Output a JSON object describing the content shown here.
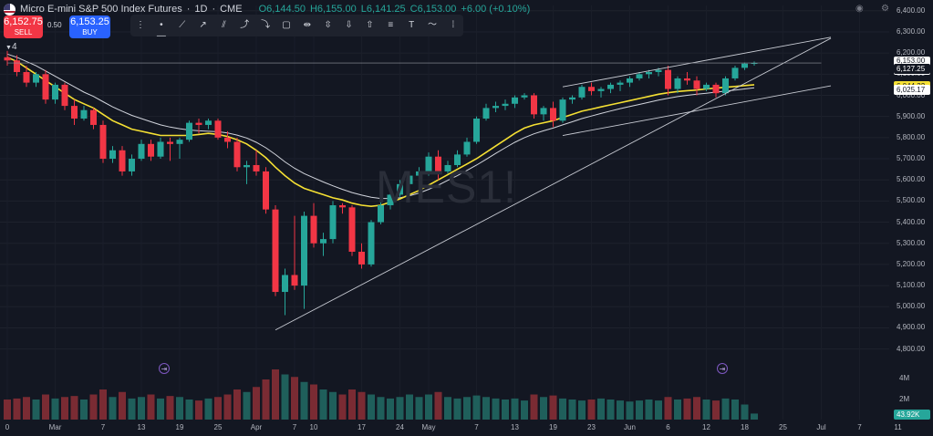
{
  "header": {
    "symbol": "Micro E-mini S&P 500 Index Futures",
    "interval": "1D",
    "exchange": "CME",
    "open": "O6,144.50",
    "high": "H6,155.00",
    "low": "L6,141.25",
    "close": "C6,153.00",
    "change": "+6.00 (+0.10%)"
  },
  "trade": {
    "sell_price": "6,152.75",
    "sell_label": "SELL",
    "spread": "0.50",
    "buy_price": "6,153.25",
    "buy_label": "BUY"
  },
  "indicator_count": "4",
  "toolbar_icons": [
    "drag-handle-icon",
    "horizontal-ray-icon",
    "trend-line-icon",
    "ray-icon",
    "channel-icon",
    "long-position-icon",
    "short-position-icon",
    "rectangle-icon",
    "date-range-icon",
    "price-range-icon",
    "arrow-down-icon",
    "arrow-up-icon",
    "horizontal-line-icon",
    "text-icon",
    "path-icon",
    "vertical-line-icon"
  ],
  "watermark": "MES1!",
  "price_labels": [
    {
      "value": "6,153.00",
      "sub": "16:47:24",
      "bg": "#ffffff",
      "fg": "#131722"
    },
    {
      "value": "6,127.25",
      "bg": "#131722",
      "fg": "#ffffff"
    },
    {
      "value": "6,044.32",
      "bg": "#f5e033",
      "fg": "#131722"
    },
    {
      "value": "6,025.17",
      "bg": "#ffffff",
      "fg": "#131722"
    }
  ],
  "volume_labels": {
    "ticks": [
      "4M",
      "2M"
    ],
    "current": "43.92K",
    "current_bg": "#26a69a"
  },
  "colors": {
    "up": "#26a69a",
    "down": "#f23645",
    "ma_fast": "#f5e033",
    "ma_slow": "#d1d4dc",
    "vol_up": "#1f5f5b",
    "vol_down": "#7a2b33"
  },
  "chart_data": {
    "type": "candlestick",
    "y_axis": {
      "range": [
        4725,
        6425
      ],
      "ticks": [
        "6,400.00",
        "6,300.00",
        "6,200.00",
        "6,100.00",
        "6,000.00",
        "5,900.00",
        "5,800.00",
        "5,700.00",
        "5,600.00",
        "5,500.00",
        "5,400.00",
        "5,300.00",
        "5,200.00",
        "5,100.00",
        "5,000.00",
        "4,900.00",
        "4,800.00"
      ],
      "tick_values": [
        6400,
        6300,
        6200,
        6100,
        6000,
        5900,
        5800,
        5700,
        5600,
        5500,
        5400,
        5300,
        5200,
        5100,
        5000,
        4900,
        4800
      ]
    },
    "x_axis": {
      "labels": [
        "0",
        "Mar",
        "7",
        "13",
        "19",
        "25",
        "Apr",
        "7",
        "10",
        "17",
        "24",
        "May",
        "7",
        "13",
        "19",
        "23",
        "Jun",
        "6",
        "12",
        "18",
        "25",
        "Jul",
        "7",
        "11"
      ],
      "positions": [
        0,
        5,
        10,
        14,
        18,
        22,
        26,
        30,
        32,
        37,
        41,
        44,
        49,
        53,
        57,
        61,
        65,
        69,
        73,
        77,
        81,
        85,
        89,
        93
      ]
    },
    "candles_ohlc": [
      [
        6180,
        6210,
        6140,
        6165
      ],
      [
        6165,
        6190,
        6090,
        6110
      ],
      [
        6110,
        6140,
        6040,
        6060
      ],
      [
        6060,
        6110,
        6040,
        6100
      ],
      [
        6100,
        6120,
        5960,
        5980
      ],
      [
        5980,
        6060,
        5960,
        6050
      ],
      [
        6050,
        6060,
        5930,
        5950
      ],
      [
        5950,
        5980,
        5860,
        5890
      ],
      [
        5890,
        5950,
        5880,
        5930
      ],
      [
        5930,
        5940,
        5840,
        5860
      ],
      [
        5860,
        5880,
        5680,
        5700
      ],
      [
        5700,
        5760,
        5680,
        5740
      ],
      [
        5740,
        5760,
        5620,
        5640
      ],
      [
        5640,
        5720,
        5620,
        5700
      ],
      [
        5700,
        5790,
        5690,
        5770
      ],
      [
        5770,
        5790,
        5690,
        5710
      ],
      [
        5710,
        5800,
        5700,
        5780
      ],
      [
        5780,
        5800,
        5690,
        5770
      ],
      [
        5770,
        5800,
        5700,
        5790
      ],
      [
        5790,
        5880,
        5780,
        5870
      ],
      [
        5870,
        5890,
        5820,
        5860
      ],
      [
        5860,
        5890,
        5840,
        5880
      ],
      [
        5880,
        5890,
        5790,
        5800
      ],
      [
        5800,
        5830,
        5750,
        5780
      ],
      [
        5780,
        5800,
        5640,
        5660
      ],
      [
        5660,
        5690,
        5580,
        5670
      ],
      [
        5670,
        5740,
        5620,
        5640
      ],
      [
        5640,
        5660,
        5440,
        5460
      ],
      [
        5460,
        5480,
        5050,
        5070
      ],
      [
        5070,
        5180,
        4960,
        5150
      ],
      [
        5150,
        5430,
        5080,
        5100
      ],
      [
        5100,
        5450,
        4990,
        5430
      ],
      [
        5430,
        5490,
        5280,
        5300
      ],
      [
        5300,
        5350,
        5240,
        5320
      ],
      [
        5320,
        5500,
        5300,
        5480
      ],
      [
        5480,
        5490,
        5440,
        5470
      ],
      [
        5470,
        5480,
        5240,
        5260
      ],
      [
        5260,
        5300,
        5180,
        5200
      ],
      [
        5200,
        5410,
        5190,
        5400
      ],
      [
        5400,
        5500,
        5390,
        5480
      ],
      [
        5480,
        5540,
        5460,
        5530
      ],
      [
        5530,
        5600,
        5520,
        5580
      ],
      [
        5580,
        5640,
        5560,
        5620
      ],
      [
        5620,
        5660,
        5580,
        5640
      ],
      [
        5640,
        5730,
        5620,
        5710
      ],
      [
        5710,
        5740,
        5600,
        5640
      ],
      [
        5640,
        5690,
        5630,
        5670
      ],
      [
        5670,
        5740,
        5660,
        5720
      ],
      [
        5720,
        5800,
        5710,
        5780
      ],
      [
        5780,
        5900,
        5770,
        5890
      ],
      [
        5890,
        5960,
        5880,
        5940
      ],
      [
        5940,
        5970,
        5920,
        5950
      ],
      [
        5950,
        5980,
        5930,
        5960
      ],
      [
        5960,
        6000,
        5940,
        5990
      ],
      [
        5990,
        6010,
        5980,
        6000
      ],
      [
        6000,
        6010,
        5890,
        5910
      ],
      [
        5910,
        5950,
        5880,
        5940
      ],
      [
        5940,
        5970,
        5850,
        5880
      ],
      [
        5880,
        5990,
        5870,
        5980
      ],
      [
        5980,
        6000,
        5960,
        5990
      ],
      [
        5990,
        6050,
        5980,
        6040
      ],
      [
        6040,
        6060,
        6000,
        6020
      ],
      [
        6020,
        6040,
        5990,
        6030
      ],
      [
        6030,
        6060,
        6010,
        6050
      ],
      [
        6050,
        6070,
        6020,
        6060
      ],
      [
        6060,
        6090,
        6040,
        6080
      ],
      [
        6080,
        6110,
        6070,
        6100
      ],
      [
        6100,
        6120,
        6080,
        6110
      ],
      [
        6110,
        6130,
        6090,
        6120
      ],
      [
        6120,
        6140,
        6000,
        6030
      ],
      [
        6030,
        6090,
        6010,
        6080
      ],
      [
        6080,
        6110,
        6050,
        6070
      ],
      [
        6070,
        6090,
        6000,
        6030
      ],
      [
        6030,
        6060,
        6020,
        6050
      ],
      [
        6050,
        6060,
        5990,
        6010
      ],
      [
        6010,
        6090,
        6000,
        6080
      ],
      [
        6080,
        6140,
        6070,
        6130
      ],
      [
        6130,
        6155,
        6120,
        6150
      ],
      [
        6150,
        6160,
        6140,
        6153
      ]
    ],
    "volume_rel": [
      0.4,
      0.42,
      0.45,
      0.4,
      0.5,
      0.42,
      0.45,
      0.47,
      0.4,
      0.5,
      0.6,
      0.45,
      0.55,
      0.42,
      0.45,
      0.5,
      0.42,
      0.47,
      0.45,
      0.4,
      0.38,
      0.42,
      0.45,
      0.5,
      0.6,
      0.55,
      0.65,
      0.8,
      1.0,
      0.9,
      0.85,
      0.75,
      0.7,
      0.6,
      0.55,
      0.5,
      0.6,
      0.55,
      0.5,
      0.45,
      0.42,
      0.45,
      0.5,
      0.45,
      0.5,
      0.55,
      0.45,
      0.42,
      0.45,
      0.48,
      0.45,
      0.42,
      0.4,
      0.42,
      0.38,
      0.5,
      0.45,
      0.48,
      0.42,
      0.4,
      0.38,
      0.4,
      0.42,
      0.4,
      0.38,
      0.36,
      0.38,
      0.4,
      0.38,
      0.45,
      0.4,
      0.42,
      0.45,
      0.4,
      0.38,
      0.42,
      0.4,
      0.3,
      0.12
    ],
    "ma_fast": [
      6180,
      6160,
      6130,
      6100,
      6070,
      6040,
      6010,
      5980,
      5960,
      5940,
      5910,
      5880,
      5860,
      5840,
      5830,
      5820,
      5810,
      5810,
      5810,
      5810,
      5815,
      5820,
      5815,
      5805,
      5790,
      5770,
      5740,
      5705,
      5660,
      5620,
      5585,
      5560,
      5545,
      5530,
      5515,
      5505,
      5490,
      5480,
      5475,
      5480,
      5495,
      5510,
      5530,
      5550,
      5575,
      5600,
      5625,
      5650,
      5675,
      5700,
      5730,
      5760,
      5790,
      5820,
      5845,
      5860,
      5870,
      5880,
      5895,
      5910,
      5925,
      5935,
      5945,
      5955,
      5965,
      5975,
      5985,
      5995,
      6005,
      6012,
      6018,
      6022,
      6025,
      6030,
      6034,
      6038,
      6042,
      6046,
      6050
    ],
    "ma_slow": [
      6195,
      6180,
      6160,
      6140,
      6115,
      6090,
      6065,
      6040,
      6015,
      5995,
      5970,
      5945,
      5925,
      5905,
      5890,
      5875,
      5860,
      5850,
      5842,
      5836,
      5832,
      5830,
      5828,
      5822,
      5812,
      5798,
      5778,
      5752,
      5720,
      5685,
      5655,
      5630,
      5610,
      5590,
      5572,
      5555,
      5540,
      5528,
      5518,
      5512,
      5512,
      5515,
      5525,
      5538,
      5555,
      5575,
      5598,
      5620,
      5645,
      5670,
      5697,
      5725,
      5752,
      5778,
      5800,
      5818,
      5832,
      5845,
      5860,
      5875,
      5890,
      5902,
      5914,
      5926,
      5937,
      5947,
      5957,
      5967,
      5977,
      5986,
      5994,
      6000,
      6005,
      6010,
      6015,
      6020,
      6025,
      6030,
      6036
    ],
    "trendlines": [
      {
        "from": [
          28,
          4890
        ],
        "to": [
          86,
          6270
        ]
      },
      {
        "from": [
          58,
          6040
        ],
        "to": [
          86,
          6275
        ]
      },
      {
        "from": [
          58,
          5810
        ],
        "to": [
          86,
          6045
        ]
      },
      {
        "from": [
          0,
          6153
        ],
        "to": [
          85,
          6153
        ]
      }
    ]
  }
}
